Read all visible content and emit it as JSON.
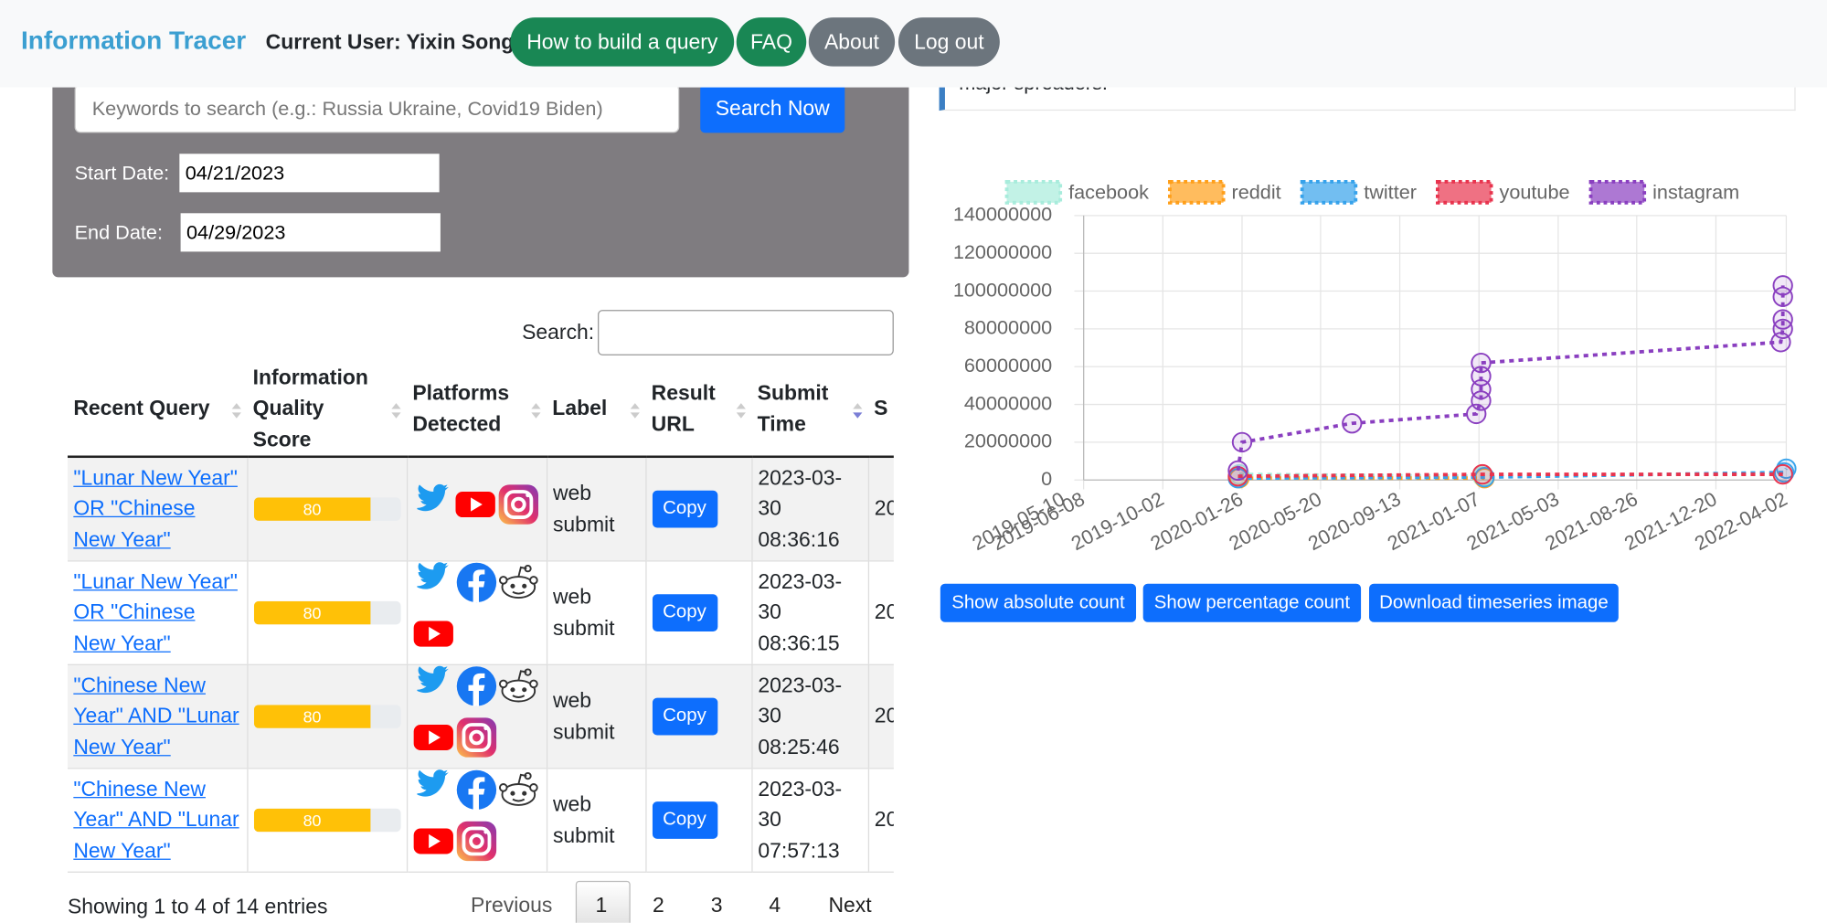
{
  "nav": {
    "brand": "Information Tracer",
    "user": "Current User: Yixin Song",
    "buttons": [
      "How to build a query",
      "FAQ",
      "About",
      "Log out"
    ]
  },
  "search": {
    "placeholder": "Keywords to search (e.g.: Russia Ukraine, Covid19 Biden)",
    "button": "Search Now",
    "start_label": "Start Date:",
    "start_value": "04/21/2023",
    "end_label": "End Date:",
    "end_value": "04/29/2023"
  },
  "info_text": "major spreaders.",
  "table": {
    "search_label": "Search:",
    "columns": [
      "Recent Query",
      "Information Quality Score",
      "Platforms Detected",
      "Label",
      "Result URL",
      "Submit Time",
      "S"
    ],
    "rows": [
      {
        "query": "\"Lunar New Year\" OR \"Chinese New Year\"",
        "score": 80,
        "label": "web submit",
        "result_url": "Copy",
        "submit_time": "2023-03-30 08:36:16",
        "extra": "20"
      },
      {
        "query": "\"Lunar New Year\" OR \"Chinese New Year\"",
        "score": 80,
        "label": "web submit",
        "result_url": "Copy",
        "submit_time": "2023-03-30 08:36:15",
        "extra": "20"
      },
      {
        "query": "\"Chinese New Year\" AND \"Lunar New Year\"",
        "score": 80,
        "label": "web submit",
        "result_url": "Copy",
        "submit_time": "2023-03-30 08:25:46",
        "extra": "20"
      },
      {
        "query": "\"Chinese New Year\" AND \"Lunar New Year\"",
        "score": 80,
        "label": "web submit",
        "result_url": "Copy",
        "submit_time": "2023-03-30 07:57:13",
        "extra": "20"
      }
    ],
    "info": "Showing 1 to 4 of 14 entries",
    "pagination": [
      "Previous",
      "1",
      "2",
      "3",
      "4",
      "Next"
    ]
  },
  "chart_data": {
    "type": "line",
    "series": [
      {
        "name": "facebook",
        "color": "#a8ecdc",
        "x": [
          "2020-01-22",
          "2021-01-12"
        ],
        "values": [
          3000000,
          2000000
        ]
      },
      {
        "name": "reddit",
        "color": "#ff9f1a",
        "x": [
          "2020-01-22",
          "2021-01-15"
        ],
        "values": [
          1000000,
          1000000
        ]
      },
      {
        "name": "twitter",
        "color": "#36a2eb",
        "x": [
          "2020-01-20",
          "2021-01-15",
          "2022-03-30",
          "2022-04-02"
        ],
        "values": [
          1000000,
          1500000,
          4000000,
          6000000
        ]
      },
      {
        "name": "youtube",
        "color": "#e8344e",
        "x": [
          "2020-01-20",
          "2021-01-12",
          "2022-03-28"
        ],
        "values": [
          2000000,
          3000000,
          3000000
        ]
      },
      {
        "name": "instagram",
        "color": "#8a3fc0",
        "x": [
          "2020-01-20",
          "2020-01-26",
          "2020-07-05",
          "2021-01-03",
          "2021-01-10",
          "2021-01-10",
          "2021-01-10",
          "2021-01-10",
          "2022-03-25",
          "2022-03-28",
          "2022-03-28",
          "2022-03-28",
          "2022-03-28"
        ],
        "values": [
          5000000,
          20000000,
          30000000,
          35000000,
          42000000,
          48000000,
          55000000,
          62000000,
          73000000,
          80000000,
          85000000,
          97000000,
          103000000
        ]
      }
    ],
    "xlim": [
      "2019-06-08",
      "2022-04-02"
    ],
    "xticks": [
      "2019-05-10",
      "2019-06-08",
      "2019-10-02",
      "2020-01-26",
      "2020-05-20",
      "2020-09-13",
      "2021-01-07",
      "2021-05-03",
      "2021-08-26",
      "2021-12-20",
      "2022-04-02"
    ],
    "ylim": [
      0,
      140000000
    ],
    "yticks": [
      0,
      20000000,
      40000000,
      60000000,
      80000000,
      100000000,
      120000000,
      140000000
    ],
    "grid": true,
    "legend": "top"
  },
  "chart_buttons": [
    "Show absolute count",
    "Show percentage count",
    "Download timeseries image"
  ]
}
